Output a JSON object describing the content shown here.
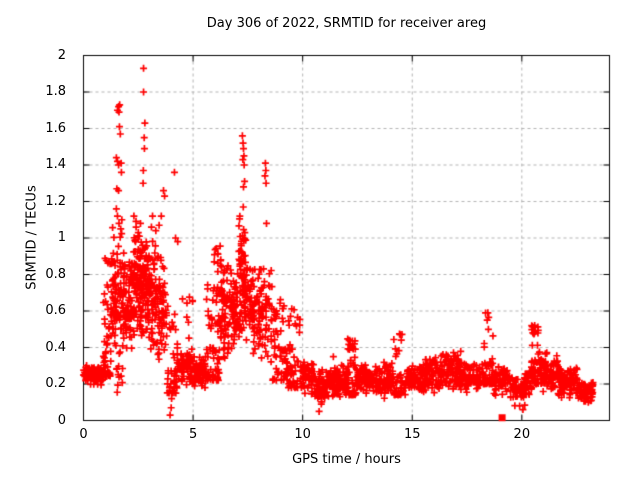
{
  "figure": {
    "background_color": "#ffffff",
    "text_color": "#000000",
    "border_color": "#000000",
    "grid_color": "#b4b4b4"
  },
  "chart_data": {
    "type": "scatter",
    "title": "Day 306 of 2022, SRMTID for receiver areg",
    "xlabel": "GPS time / hours",
    "ylabel": "SRMTID / TECUs",
    "xlim": [
      0,
      24
    ],
    "ylim": [
      0,
      2
    ],
    "x_ticks": [
      0,
      5,
      10,
      15,
      20
    ],
    "x_tick_labels": [
      "0",
      "5",
      "10",
      "15",
      "20"
    ],
    "y_ticks": [
      0,
      0.2,
      0.4,
      0.6,
      0.8,
      1,
      1.2,
      1.4,
      1.6,
      1.8,
      2
    ],
    "y_tick_labels": [
      "0",
      "0.2",
      "0.4",
      "0.6",
      "0.8",
      "1",
      "1.2",
      "1.4",
      "1.6",
      "1.8",
      "2"
    ],
    "grid": true,
    "legend": "none",
    "marker": "plus",
    "marker_color": "#ff0000",
    "marker_size_px": 7,
    "seed": 20220306,
    "density_bands_columns": [
      "x0_hours",
      "x1_hours",
      "y_min_tecu",
      "y_max_tecu",
      "count",
      "distribution"
    ],
    "density_bands": [
      [
        0.0,
        0.92,
        0.19,
        0.31,
        110,
        "mid"
      ],
      [
        0.9,
        1.25,
        0.24,
        0.92,
        45,
        "low"
      ],
      [
        1.25,
        1.8,
        0.28,
        1.08,
        90,
        "mid"
      ],
      [
        1.45,
        1.8,
        0.15,
        0.3,
        10,
        "uniform"
      ],
      [
        1.8,
        2.2,
        0.3,
        1.02,
        75,
        "mid"
      ],
      [
        2.2,
        2.65,
        0.38,
        1.12,
        85,
        "mid"
      ],
      [
        2.65,
        2.95,
        0.4,
        1.0,
        60,
        "mid"
      ],
      [
        2.95,
        3.35,
        0.35,
        1.02,
        70,
        "mid"
      ],
      [
        3.35,
        3.8,
        0.3,
        0.95,
        60,
        "mid"
      ],
      [
        3.8,
        4.3,
        0.15,
        0.65,
        45,
        "low"
      ],
      [
        4.3,
        5.05,
        0.18,
        0.42,
        65,
        "mid"
      ],
      [
        4.4,
        5.0,
        0.42,
        0.68,
        8,
        "uniform"
      ],
      [
        5.05,
        5.6,
        0.17,
        0.37,
        65,
        "mid"
      ],
      [
        5.6,
        6.2,
        0.22,
        0.78,
        60,
        "low"
      ],
      [
        5.95,
        6.4,
        0.78,
        1.0,
        12,
        "uniform"
      ],
      [
        6.2,
        6.65,
        0.3,
        0.92,
        60,
        "mid"
      ],
      [
        6.65,
        7.05,
        0.33,
        0.85,
        55,
        "mid"
      ],
      [
        7.05,
        7.5,
        0.4,
        1.15,
        85,
        "mid"
      ],
      [
        7.5,
        8.1,
        0.3,
        0.92,
        70,
        "mid"
      ],
      [
        8.1,
        8.6,
        0.3,
        0.95,
        55,
        "mid"
      ],
      [
        8.6,
        9.35,
        0.22,
        0.68,
        60,
        "low"
      ],
      [
        9.35,
        9.95,
        0.18,
        0.62,
        50,
        "low"
      ],
      [
        9.95,
        10.55,
        0.13,
        0.34,
        55,
        "mid"
      ],
      [
        10.55,
        11.05,
        0.09,
        0.28,
        45,
        "mid"
      ],
      [
        11.05,
        12.05,
        0.12,
        0.31,
        110,
        "mid"
      ],
      [
        12.05,
        12.45,
        0.14,
        0.45,
        40,
        "low"
      ],
      [
        12.45,
        13.45,
        0.13,
        0.31,
        100,
        "mid"
      ],
      [
        13.45,
        14.15,
        0.12,
        0.34,
        70,
        "mid"
      ],
      [
        14.15,
        14.7,
        0.14,
        0.48,
        45,
        "low"
      ],
      [
        14.7,
        15.35,
        0.13,
        0.31,
        55,
        "mid"
      ],
      [
        15.35,
        16.35,
        0.14,
        0.37,
        100,
        "mid"
      ],
      [
        16.35,
        17.35,
        0.15,
        0.39,
        95,
        "mid"
      ],
      [
        17.35,
        18.25,
        0.14,
        0.34,
        70,
        "mid"
      ],
      [
        18.25,
        18.7,
        0.2,
        0.6,
        45,
        "low"
      ],
      [
        18.7,
        19.45,
        0.12,
        0.31,
        60,
        "mid"
      ],
      [
        19.45,
        20.15,
        0.08,
        0.25,
        55,
        "mid"
      ],
      [
        20.15,
        20.45,
        0.1,
        0.31,
        25,
        "mid"
      ],
      [
        20.45,
        20.75,
        0.2,
        0.53,
        40,
        "low"
      ],
      [
        20.75,
        21.65,
        0.15,
        0.38,
        100,
        "mid"
      ],
      [
        21.65,
        22.55,
        0.12,
        0.31,
        100,
        "mid"
      ],
      [
        22.55,
        23.25,
        0.09,
        0.22,
        75,
        "mid"
      ]
    ],
    "outlier_points": [
      [
        1.55,
        1.7
      ],
      [
        1.6,
        1.72
      ],
      [
        1.62,
        1.69
      ],
      [
        1.65,
        1.73
      ],
      [
        1.64,
        1.61
      ],
      [
        1.68,
        1.57
      ],
      [
        1.5,
        1.44
      ],
      [
        1.55,
        1.42
      ],
      [
        1.6,
        1.4
      ],
      [
        1.72,
        1.41
      ],
      [
        1.73,
        1.36
      ],
      [
        1.52,
        1.27
      ],
      [
        1.6,
        1.26
      ],
      [
        1.5,
        1.16
      ],
      [
        1.55,
        1.12
      ],
      [
        1.62,
        1.08
      ],
      [
        1.7,
        1.05
      ],
      [
        1.75,
        1.1
      ],
      [
        2.74,
        1.93
      ],
      [
        2.74,
        1.8
      ],
      [
        2.8,
        1.63
      ],
      [
        2.77,
        1.55
      ],
      [
        2.78,
        1.49
      ],
      [
        2.73,
        1.37
      ],
      [
        2.72,
        1.3
      ],
      [
        2.3,
        1.12
      ],
      [
        2.4,
        1.06
      ],
      [
        2.5,
        1.03
      ],
      [
        2.6,
        1.08
      ],
      [
        3.1,
        1.06
      ],
      [
        3.15,
        1.12
      ],
      [
        3.3,
        1.04
      ],
      [
        3.45,
        1.07
      ],
      [
        3.55,
        1.12
      ],
      [
        3.65,
        1.26
      ],
      [
        3.7,
        1.23
      ],
      [
        4.15,
        1.36
      ],
      [
        4.2,
        1.0
      ],
      [
        4.3,
        0.98
      ],
      [
        3.95,
        0.03
      ],
      [
        4.0,
        0.07
      ],
      [
        4.02,
        0.12
      ],
      [
        7.25,
        1.56
      ],
      [
        7.28,
        1.52
      ],
      [
        7.3,
        1.49
      ],
      [
        7.32,
        1.45
      ],
      [
        7.27,
        1.43
      ],
      [
        7.33,
        1.4
      ],
      [
        7.35,
        1.31
      ],
      [
        7.3,
        1.28
      ],
      [
        7.29,
        1.17
      ],
      [
        7.36,
        1.03
      ],
      [
        8.3,
        1.41
      ],
      [
        8.32,
        1.37
      ],
      [
        8.28,
        1.34
      ],
      [
        8.33,
        1.3
      ],
      [
        8.35,
        1.08
      ],
      [
        10.75,
        0.05
      ],
      [
        10.85,
        0.09
      ],
      [
        19.9,
        0.08
      ],
      [
        20.05,
        0.06
      ],
      [
        14.45,
        0.47
      ],
      [
        14.5,
        0.44
      ],
      [
        18.45,
        0.59
      ],
      [
        18.42,
        0.55
      ],
      [
        20.55,
        0.51
      ],
      [
        20.5,
        0.48
      ],
      [
        11.4,
        0.35
      ],
      [
        12.15,
        0.44
      ],
      [
        12.2,
        0.4
      ]
    ],
    "square_points": [
      [
        19.1,
        0.015
      ]
    ]
  }
}
